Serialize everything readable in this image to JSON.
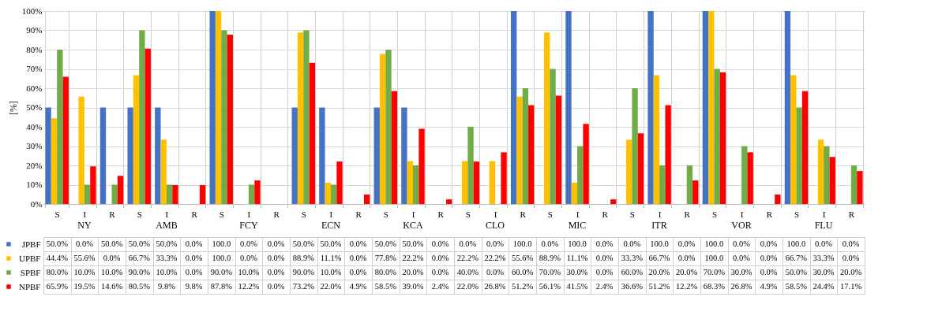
{
  "chart_data": {
    "type": "bar",
    "ylabel": "[%]",
    "categories": [
      "S",
      "I",
      "R",
      "S",
      "I",
      "R",
      "S",
      "I",
      "R",
      "S",
      "I",
      "R",
      "S",
      "I",
      "R",
      "S",
      "I",
      "R",
      "S",
      "I",
      "R",
      "S",
      "I",
      "R",
      "S",
      "I",
      "R",
      "S",
      "I",
      "R"
    ],
    "annotations": [
      "NY",
      "AMB",
      "FCY",
      "ECN",
      "KCA",
      "CLO",
      "MIC",
      "ITR",
      "VOR",
      "FLU"
    ],
    "series": [
      {
        "name": "JPBF",
        "color": "#4472c4",
        "values": [
          50.0,
          0.0,
          50.0,
          50.0,
          50.0,
          0.0,
          100.0,
          0.0,
          0.0,
          50.0,
          50.0,
          0.0,
          50.0,
          50.0,
          0.0,
          0.0,
          0.0,
          100.0,
          0.0,
          100.0,
          0.0,
          0.0,
          100.0,
          0.0,
          100.0,
          0.0,
          0.0,
          100.0,
          0.0,
          0.0
        ],
        "value_labels": [
          "50.0%",
          "0.0%",
          "50.0%",
          "50.0%",
          "50.0%",
          "0.0%",
          "100.0",
          "0.0%",
          "0.0%",
          "50.0%",
          "50.0%",
          "0.0%",
          "50.0%",
          "50.0%",
          "0.0%",
          "0.0%",
          "0.0%",
          "100.0",
          "0.0%",
          "100.0",
          "0.0%",
          "0.0%",
          "100.0",
          "0.0%",
          "100.0",
          "0.0%",
          "0.0%",
          "100.0",
          "0.0%",
          "0.0%"
        ]
      },
      {
        "name": "UPBF",
        "color": "#ffc000",
        "values": [
          44.4,
          55.6,
          0.0,
          66.7,
          33.3,
          0.0,
          100.0,
          0.0,
          0.0,
          88.9,
          11.1,
          0.0,
          77.8,
          22.2,
          0.0,
          22.2,
          22.2,
          55.6,
          88.9,
          11.1,
          0.0,
          33.3,
          66.7,
          0.0,
          100.0,
          0.0,
          0.0,
          66.7,
          33.3,
          0.0
        ],
        "value_labels": [
          "44.4%",
          "55.6%",
          "0.0%",
          "66.7%",
          "33.3%",
          "0.0%",
          "100.0",
          "0.0%",
          "0.0%",
          "88.9%",
          "11.1%",
          "0.0%",
          "77.8%",
          "22.2%",
          "0.0%",
          "22.2%",
          "22.2%",
          "55.6%",
          "88.9%",
          "11.1%",
          "0.0%",
          "33.3%",
          "66.7%",
          "0.0%",
          "100.0",
          "0.0%",
          "0.0%",
          "66.7%",
          "33.3%",
          "0.0%"
        ]
      },
      {
        "name": "SPBF",
        "color": "#70ad47",
        "values": [
          80.0,
          10.0,
          10.0,
          90.0,
          10.0,
          0.0,
          90.0,
          10.0,
          0.0,
          90.0,
          10.0,
          0.0,
          80.0,
          20.0,
          0.0,
          40.0,
          0.0,
          60.0,
          70.0,
          30.0,
          0.0,
          60.0,
          20.0,
          20.0,
          70.0,
          30.0,
          0.0,
          50.0,
          30.0,
          20.0
        ],
        "value_labels": [
          "80.0%",
          "10.0%",
          "10.0%",
          "90.0%",
          "10.0%",
          "0.0%",
          "90.0%",
          "10.0%",
          "0.0%",
          "90.0%",
          "10.0%",
          "0.0%",
          "80.0%",
          "20.0%",
          "0.0%",
          "40.0%",
          "0.0%",
          "60.0%",
          "70.0%",
          "30.0%",
          "0.0%",
          "60.0%",
          "20.0%",
          "20.0%",
          "70.0%",
          "30.0%",
          "0.0%",
          "50.0%",
          "30.0%",
          "20.0%"
        ]
      },
      {
        "name": "NPBF",
        "color": "#ff0000",
        "values": [
          65.9,
          19.5,
          14.6,
          80.5,
          9.8,
          9.8,
          87.8,
          12.2,
          0.0,
          73.2,
          22.0,
          4.9,
          58.5,
          39.0,
          2.4,
          22.0,
          26.8,
          51.2,
          56.1,
          41.5,
          2.4,
          36.6,
          51.2,
          12.2,
          68.3,
          26.8,
          4.9,
          58.5,
          24.4,
          17.1
        ],
        "value_labels": [
          "65.9%",
          "19.5%",
          "14.6%",
          "80.5%",
          "9.8%",
          "9.8%",
          "87.8%",
          "12.2%",
          "0.0%",
          "73.2%",
          "22.0%",
          "4.9%",
          "58.5%",
          "39.0%",
          "2.4%",
          "22.0%",
          "26.8%",
          "51.2%",
          "56.1%",
          "41.5%",
          "2.4%",
          "36.6%",
          "51.2%",
          "12.2%",
          "68.3%",
          "26.8%",
          "4.9%",
          "58.5%",
          "24.4%",
          "17.1%"
        ]
      }
    ],
    "ylim": [
      0,
      100
    ],
    "yticks": [
      {
        "value": 0,
        "label": "0%"
      },
      {
        "value": 10,
        "label": "10%"
      },
      {
        "value": 20,
        "label": "20%"
      },
      {
        "value": 30,
        "label": "30%"
      },
      {
        "value": 40,
        "label": "40%"
      },
      {
        "value": 50,
        "label": "50%"
      },
      {
        "value": 60,
        "label": "60%"
      },
      {
        "value": 70,
        "label": "70%"
      },
      {
        "value": 80,
        "label": "80%"
      },
      {
        "value": 90,
        "label": "90%"
      },
      {
        "value": 100,
        "label": "100%"
      }
    ],
    "grid": true,
    "legend": "bottom"
  }
}
